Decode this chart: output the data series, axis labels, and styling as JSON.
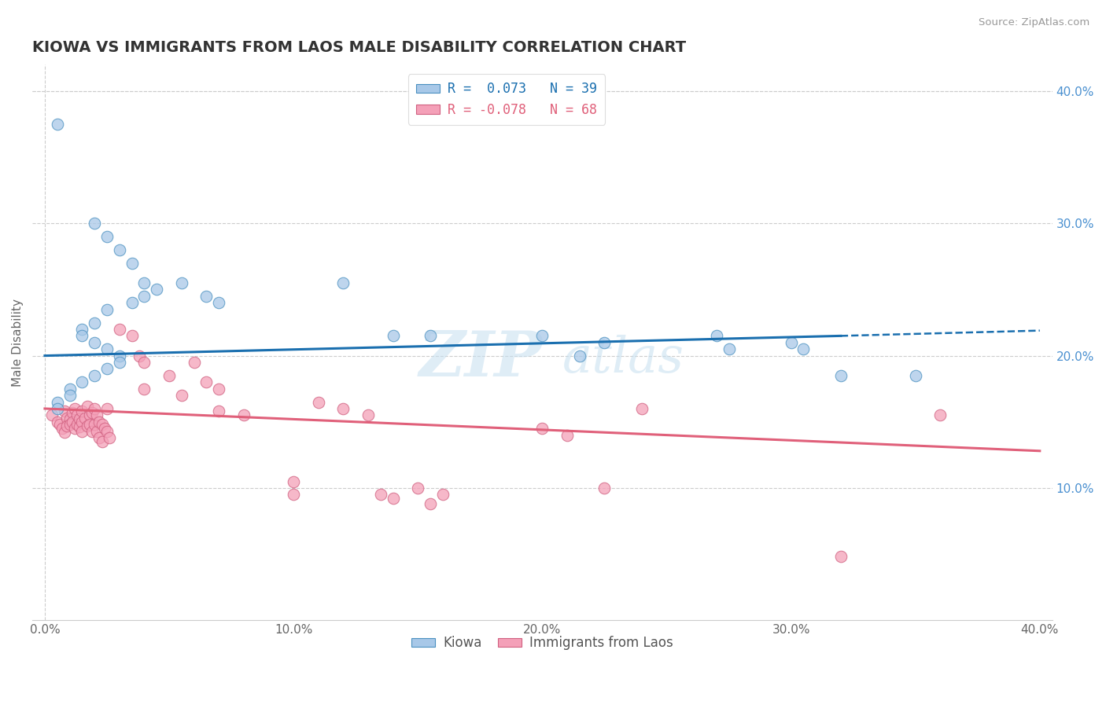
{
  "title": "KIOWA VS IMMIGRANTS FROM LAOS MALE DISABILITY CORRELATION CHART",
  "source": "Source: ZipAtlas.com",
  "ylabel": "Male Disability",
  "xlim": [
    0.0,
    0.4
  ],
  "ylim": [
    0.0,
    0.42
  ],
  "right_yticks": [
    0.1,
    0.2,
    0.3,
    0.4
  ],
  "right_ytick_labels": [
    "10.0%",
    "20.0%",
    "30.0%",
    "40.0%"
  ],
  "xtick_labels": [
    "0.0%",
    "10.0%",
    "20.0%",
    "30.0%",
    "40.0%"
  ],
  "xticks": [
    0.0,
    0.1,
    0.2,
    0.3,
    0.4
  ],
  "watermark": "ZIP atlas",
  "blue_color": "#a8c8e8",
  "pink_color": "#f4a0b8",
  "blue_line_color": "#1a6faf",
  "pink_line_color": "#e0607a",
  "blue_edge_color": "#4a90c0",
  "pink_edge_color": "#d06080",
  "kiowa_line_start_x": 0.0,
  "kiowa_line_start_y": 0.2,
  "kiowa_line_end_solid_x": 0.32,
  "kiowa_line_end_solid_y": 0.215,
  "kiowa_line_end_dash_x": 0.4,
  "kiowa_line_end_dash_y": 0.219,
  "laos_line_start_x": 0.0,
  "laos_line_start_y": 0.16,
  "laos_line_end_x": 0.4,
  "laos_line_end_y": 0.128,
  "kiowa_points": [
    [
      0.005,
      0.375
    ],
    [
      0.02,
      0.3
    ],
    [
      0.025,
      0.29
    ],
    [
      0.03,
      0.28
    ],
    [
      0.035,
      0.27
    ],
    [
      0.04,
      0.255
    ],
    [
      0.045,
      0.25
    ],
    [
      0.04,
      0.245
    ],
    [
      0.035,
      0.24
    ],
    [
      0.025,
      0.235
    ],
    [
      0.02,
      0.225
    ],
    [
      0.015,
      0.22
    ],
    [
      0.015,
      0.215
    ],
    [
      0.02,
      0.21
    ],
    [
      0.025,
      0.205
    ],
    [
      0.03,
      0.2
    ],
    [
      0.03,
      0.195
    ],
    [
      0.025,
      0.19
    ],
    [
      0.02,
      0.185
    ],
    [
      0.015,
      0.18
    ],
    [
      0.01,
      0.175
    ],
    [
      0.01,
      0.17
    ],
    [
      0.005,
      0.165
    ],
    [
      0.005,
      0.16
    ],
    [
      0.055,
      0.255
    ],
    [
      0.065,
      0.245
    ],
    [
      0.07,
      0.24
    ],
    [
      0.12,
      0.255
    ],
    [
      0.14,
      0.215
    ],
    [
      0.155,
      0.215
    ],
    [
      0.2,
      0.215
    ],
    [
      0.215,
      0.2
    ],
    [
      0.225,
      0.21
    ],
    [
      0.27,
      0.215
    ],
    [
      0.275,
      0.205
    ],
    [
      0.3,
      0.21
    ],
    [
      0.305,
      0.205
    ],
    [
      0.32,
      0.185
    ],
    [
      0.35,
      0.185
    ]
  ],
  "laos_points": [
    [
      0.003,
      0.155
    ],
    [
      0.005,
      0.15
    ],
    [
      0.006,
      0.148
    ],
    [
      0.007,
      0.145
    ],
    [
      0.008,
      0.142
    ],
    [
      0.008,
      0.158
    ],
    [
      0.009,
      0.153
    ],
    [
      0.009,
      0.147
    ],
    [
      0.01,
      0.152
    ],
    [
      0.01,
      0.148
    ],
    [
      0.011,
      0.157
    ],
    [
      0.011,
      0.15
    ],
    [
      0.012,
      0.16
    ],
    [
      0.012,
      0.145
    ],
    [
      0.013,
      0.155
    ],
    [
      0.013,
      0.148
    ],
    [
      0.014,
      0.152
    ],
    [
      0.014,
      0.146
    ],
    [
      0.015,
      0.15
    ],
    [
      0.015,
      0.143
    ],
    [
      0.015,
      0.158
    ],
    [
      0.016,
      0.153
    ],
    [
      0.017,
      0.147
    ],
    [
      0.017,
      0.162
    ],
    [
      0.018,
      0.155
    ],
    [
      0.018,
      0.148
    ],
    [
      0.019,
      0.157
    ],
    [
      0.019,
      0.143
    ],
    [
      0.02,
      0.16
    ],
    [
      0.02,
      0.148
    ],
    [
      0.021,
      0.155
    ],
    [
      0.021,
      0.143
    ],
    [
      0.022,
      0.15
    ],
    [
      0.022,
      0.138
    ],
    [
      0.023,
      0.148
    ],
    [
      0.023,
      0.135
    ],
    [
      0.024,
      0.145
    ],
    [
      0.025,
      0.16
    ],
    [
      0.025,
      0.143
    ],
    [
      0.026,
      0.138
    ],
    [
      0.03,
      0.22
    ],
    [
      0.035,
      0.215
    ],
    [
      0.038,
      0.2
    ],
    [
      0.04,
      0.195
    ],
    [
      0.04,
      0.175
    ],
    [
      0.05,
      0.185
    ],
    [
      0.055,
      0.17
    ],
    [
      0.06,
      0.195
    ],
    [
      0.065,
      0.18
    ],
    [
      0.07,
      0.175
    ],
    [
      0.07,
      0.158
    ],
    [
      0.08,
      0.155
    ],
    [
      0.1,
      0.105
    ],
    [
      0.1,
      0.095
    ],
    [
      0.11,
      0.165
    ],
    [
      0.12,
      0.16
    ],
    [
      0.13,
      0.155
    ],
    [
      0.135,
      0.095
    ],
    [
      0.14,
      0.092
    ],
    [
      0.15,
      0.1
    ],
    [
      0.155,
      0.088
    ],
    [
      0.16,
      0.095
    ],
    [
      0.2,
      0.145
    ],
    [
      0.21,
      0.14
    ],
    [
      0.225,
      0.1
    ],
    [
      0.24,
      0.16
    ],
    [
      0.32,
      0.048
    ],
    [
      0.36,
      0.155
    ]
  ]
}
